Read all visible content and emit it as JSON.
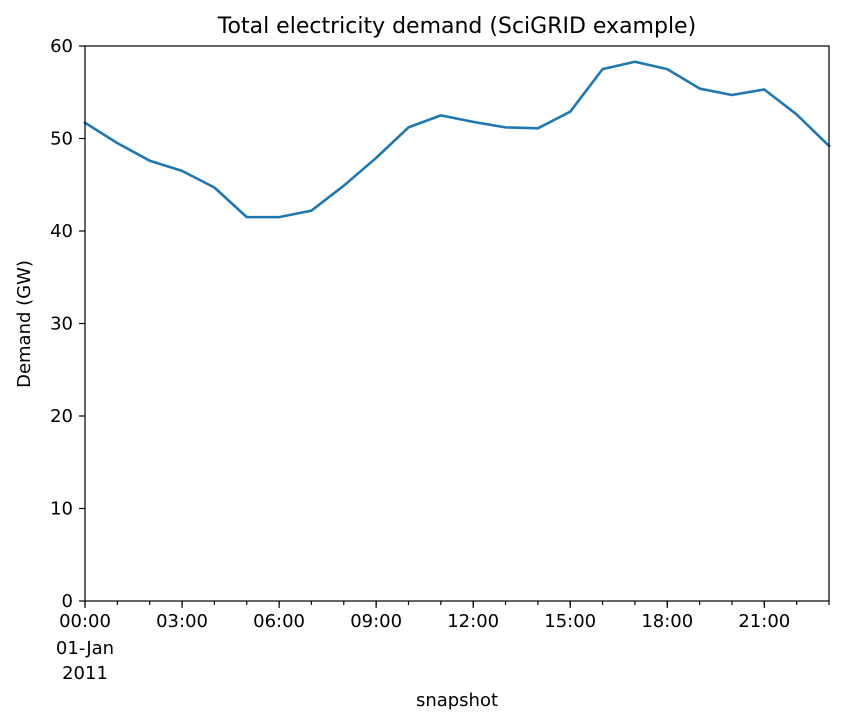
{
  "chart_data": {
    "type": "line",
    "title": "Total electricity demand (SciGRID example)",
    "xlabel": "snapshot",
    "ylabel": "Demand (GW)",
    "x": [
      "00:00",
      "01:00",
      "02:00",
      "03:00",
      "04:00",
      "05:00",
      "06:00",
      "07:00",
      "08:00",
      "09:00",
      "10:00",
      "11:00",
      "12:00",
      "13:00",
      "14:00",
      "15:00",
      "16:00",
      "17:00",
      "18:00",
      "19:00",
      "20:00",
      "21:00",
      "22:00",
      "23:00"
    ],
    "xlim": [
      "00:00",
      "23:00"
    ],
    "ylim": [
      0,
      60
    ],
    "yticks": [
      0,
      10,
      20,
      30,
      40,
      50,
      60
    ],
    "xticks": [
      {
        "label": "00:00",
        "sub": [
          "01-Jan",
          "2011"
        ]
      },
      {
        "label": "03:00"
      },
      {
        "label": "06:00"
      },
      {
        "label": "09:00"
      },
      {
        "label": "12:00"
      },
      {
        "label": "15:00"
      },
      {
        "label": "18:00"
      },
      {
        "label": "21:00"
      }
    ],
    "series": [
      {
        "color": "#1f77b4",
        "values": [
          51.7,
          49.5,
          47.6,
          46.5,
          44.7,
          41.5,
          41.5,
          42.2,
          44.9,
          47.9,
          51.2,
          52.5,
          51.8,
          51.2,
          51.1,
          52.9,
          57.5,
          58.3,
          57.5,
          55.4,
          54.7,
          55.3,
          52.6,
          49.2
        ]
      }
    ],
    "grid": false,
    "legend": "none"
  }
}
